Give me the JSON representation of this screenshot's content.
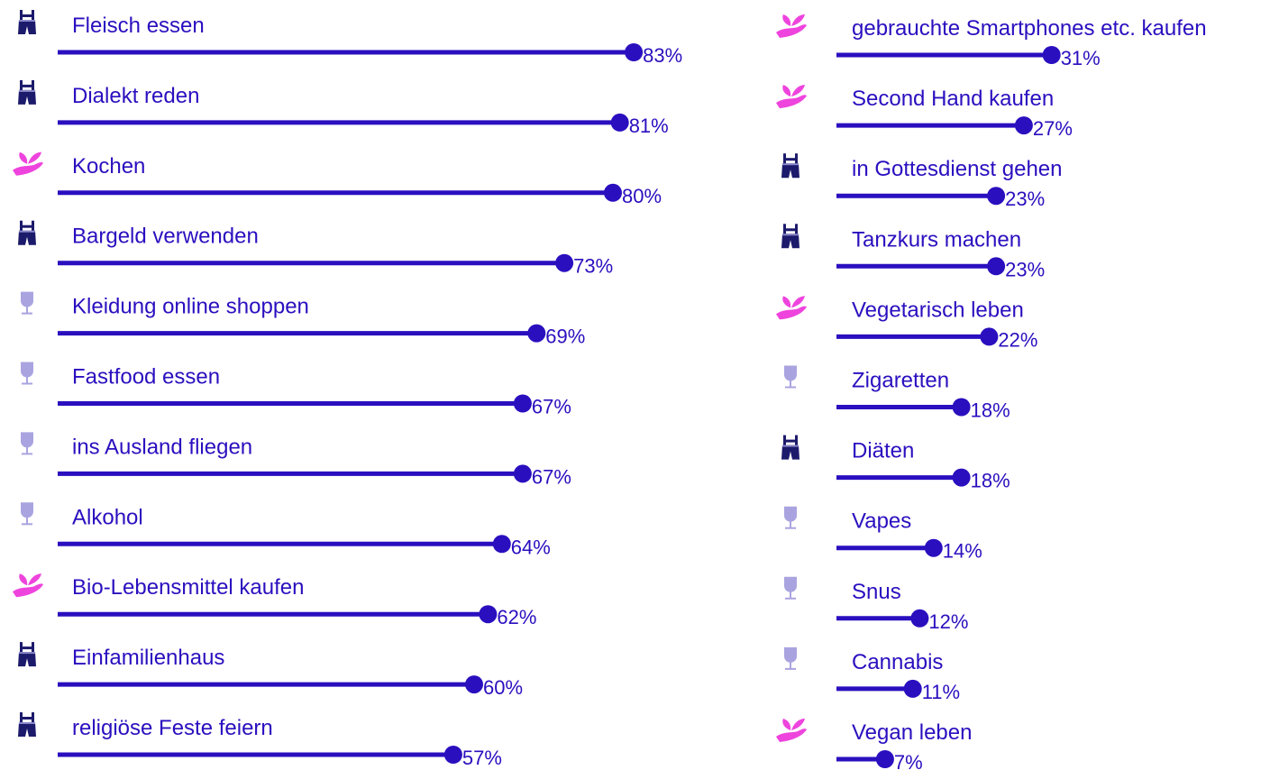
{
  "chart_data": [
    {
      "type": "lollipop",
      "color": "#2a0fbf",
      "categories": [
        "Fleisch essen",
        "Dialekt reden",
        "Kochen",
        "Bargeld verwenden",
        "Kleidung online shoppen",
        "Fastfood essen",
        "ins Ausland fliegen",
        "Alkohol",
        "Bio-Lebensmittel kaufen",
        "Einfamilienhaus",
        "religiöse Feste feiern"
      ],
      "values": [
        83,
        81,
        80,
        73,
        69,
        67,
        67,
        64,
        62,
        60,
        57
      ],
      "value_labels": [
        "83%",
        "81%",
        "80%",
        "73%",
        "69%",
        "67%",
        "67%",
        "64%",
        "62%",
        "60%",
        "57%"
      ]
    },
    {
      "type": "lollipop",
      "color": "#2a0fbf",
      "categories": [
        "gebrauchte Smartphones etc. kaufen",
        "Second Hand kaufen",
        "in Gottesdienst gehen",
        "Tanzkurs machen",
        "Vegetarisch leben",
        "Zigaretten",
        "Diäten",
        "Vapes",
        "Snus",
        "Cannabis",
        "Vegan leben"
      ],
      "values": [
        31,
        27,
        23,
        23,
        22,
        18,
        18,
        14,
        12,
        11,
        7
      ],
      "value_labels": [
        "31%",
        "27%",
        "23%",
        "23%",
        "22%",
        "18%",
        "18%",
        "14%",
        "12%",
        "11%",
        "7%"
      ]
    }
  ]
}
